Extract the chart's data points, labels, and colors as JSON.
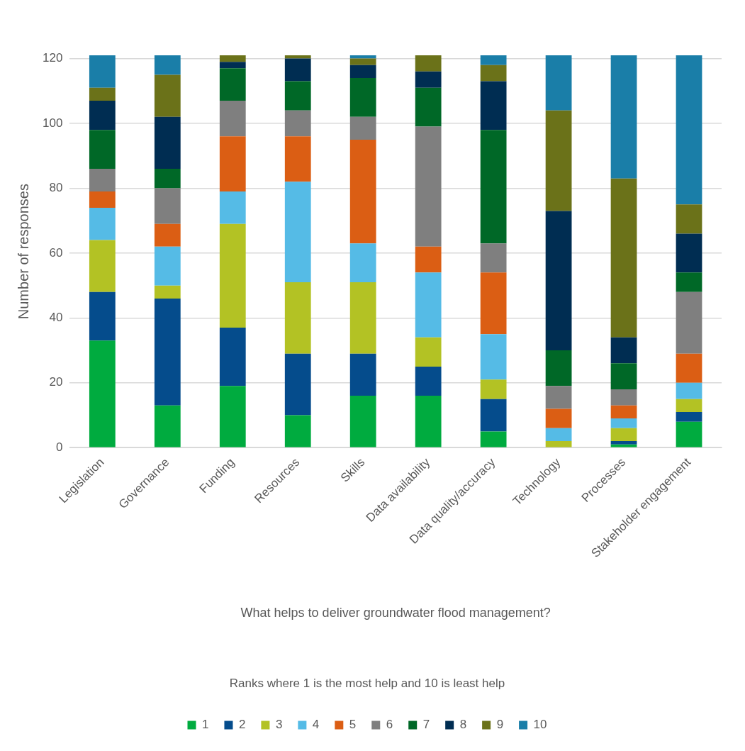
{
  "chart_data": {
    "type": "bar",
    "stacked": true,
    "xlabel": "What helps to deliver groundwater flood management?",
    "ylabel": "Number of responses",
    "legend_title": "Ranks where 1 is the most help and 10 is least help",
    "legend": "bottom",
    "grid": "y",
    "categories": [
      "Legislation",
      "Governance",
      "Funding",
      "Resources",
      "Skills",
      "Data availability",
      "Data quality/accuracy",
      "Technology",
      "Processes",
      "Stakeholder engagement"
    ],
    "ylim": [
      0,
      121
    ],
    "yticks": [
      0,
      20,
      40,
      60,
      80,
      100,
      120
    ],
    "series": [
      {
        "name": "1",
        "color": "#00ab3f",
        "values": [
          33,
          13,
          19,
          10,
          16,
          16,
          5,
          0,
          1,
          8
        ]
      },
      {
        "name": "2",
        "color": "#054c8c",
        "values": [
          15,
          33,
          18,
          19,
          13,
          9,
          10,
          0,
          1,
          3
        ]
      },
      {
        "name": "3",
        "color": "#b3c224",
        "values": [
          16,
          4,
          32,
          22,
          22,
          9,
          6,
          2,
          4,
          4
        ]
      },
      {
        "name": "4",
        "color": "#55bbe6",
        "values": [
          10,
          12,
          10,
          31,
          12,
          20,
          14,
          4,
          3,
          5
        ]
      },
      {
        "name": "5",
        "color": "#db5e14",
        "values": [
          5,
          7,
          17,
          14,
          32,
          8,
          19,
          6,
          4,
          9
        ]
      },
      {
        "name": "6",
        "color": "#7f7f7f",
        "values": [
          7,
          11,
          11,
          8,
          7,
          37,
          9,
          7,
          5,
          19
        ]
      },
      {
        "name": "7",
        "color": "#006827",
        "values": [
          12,
          6,
          10,
          9,
          12,
          12,
          35,
          11,
          8,
          6
        ]
      },
      {
        "name": "8",
        "color": "#002d52",
        "values": [
          9,
          16,
          2,
          7,
          4,
          5,
          15,
          43,
          8,
          12
        ]
      },
      {
        "name": "9",
        "color": "#6b7219",
        "values": [
          4,
          13,
          2,
          1,
          2,
          5,
          5,
          31,
          49,
          9
        ]
      },
      {
        "name": "10",
        "color": "#1a7ea8",
        "values": [
          10,
          6,
          0,
          0,
          1,
          0,
          3,
          17,
          38,
          46
        ]
      }
    ]
  }
}
